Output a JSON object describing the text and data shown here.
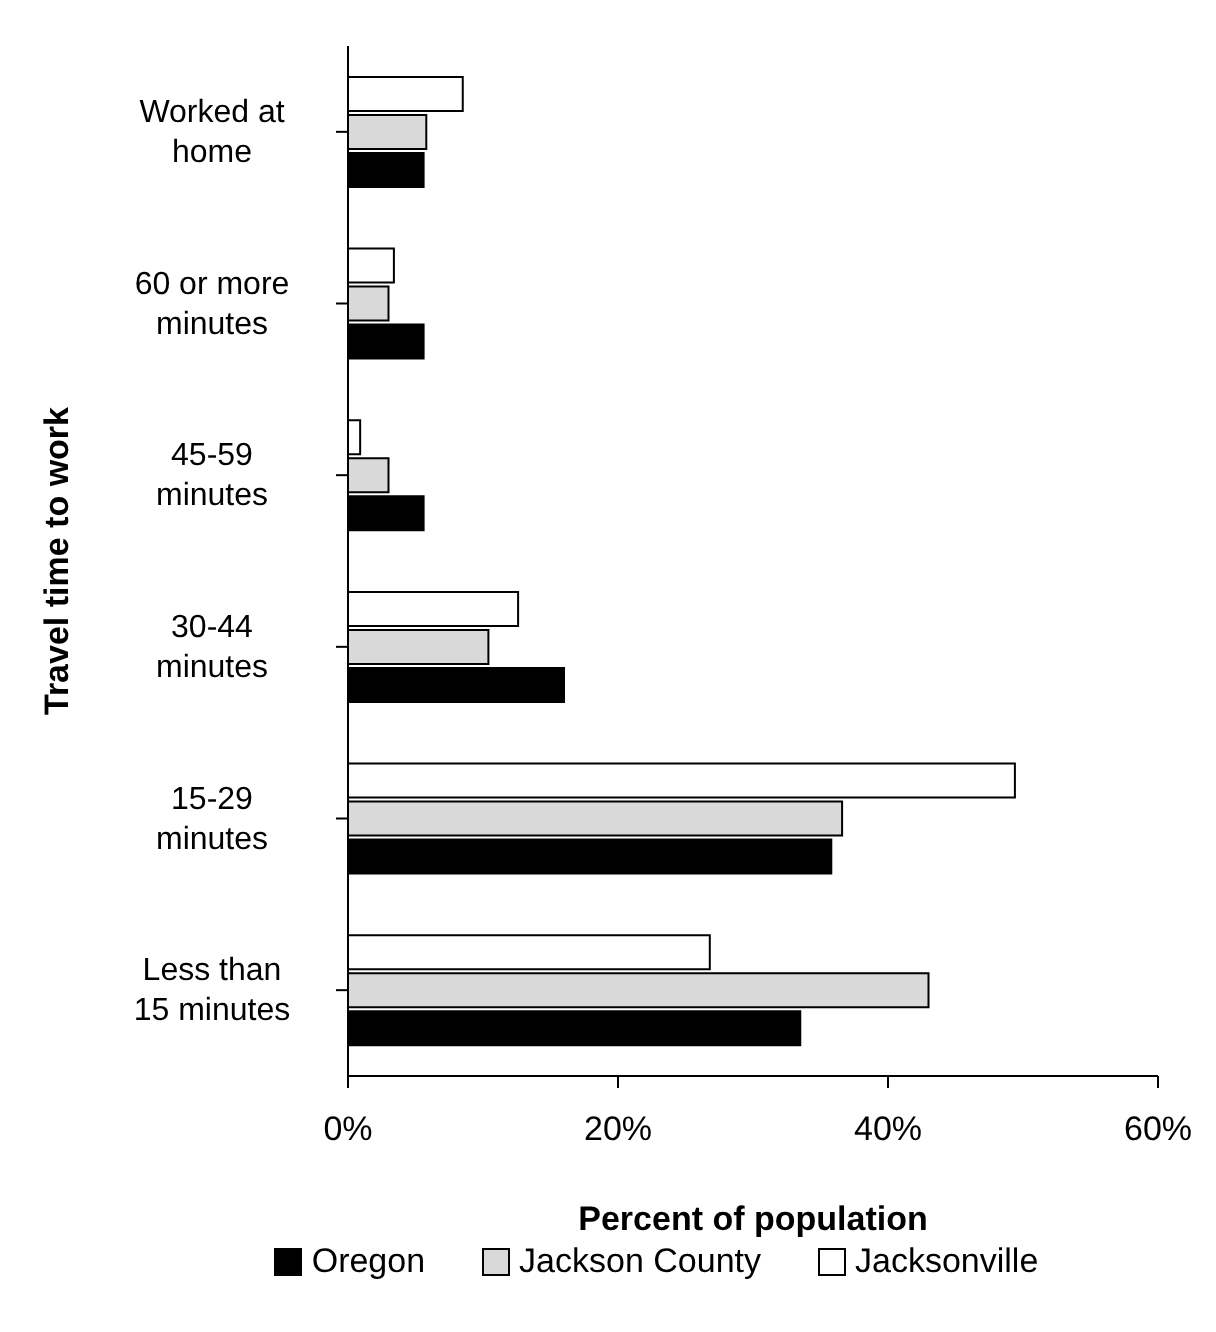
{
  "chart_data": {
    "type": "bar",
    "orientation": "horizontal",
    "ylabel": "Travel time to work",
    "xlabel": "Percent of population",
    "categories": [
      "Worked at home",
      "60 or more minutes",
      "45-59 minutes",
      "30-44 minutes",
      "15-29 minutes",
      "Less than 15 minutes"
    ],
    "series": [
      {
        "name": "Jacksonville",
        "color": "#ffffff",
        "values": [
          8.5,
          3.4,
          0.9,
          12.6,
          49.4,
          26.8
        ]
      },
      {
        "name": "Jackson County",
        "color": "#d9d9d9",
        "values": [
          5.8,
          3.0,
          3.0,
          10.4,
          36.6,
          43.0
        ]
      },
      {
        "name": "Oregon",
        "color": "#000000",
        "values": [
          5.6,
          5.6,
          5.6,
          16.0,
          35.8,
          33.5
        ]
      }
    ],
    "xlim": [
      0,
      60
    ],
    "xticks": [
      {
        "value": 0,
        "label": "0%"
      },
      {
        "value": 20,
        "label": "20%"
      },
      {
        "value": 40,
        "label": "40%"
      },
      {
        "value": 60,
        "label": "60%"
      }
    ],
    "grid": false,
    "legend": "bottom"
  }
}
